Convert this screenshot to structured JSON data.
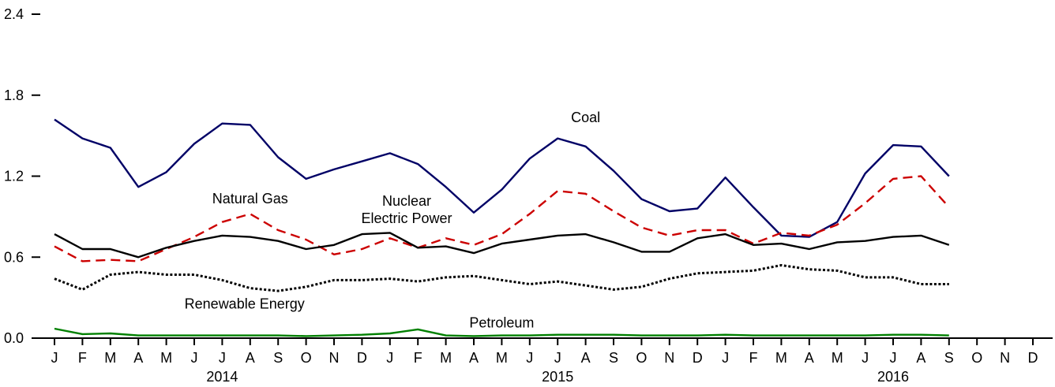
{
  "chart_data": {
    "type": "line",
    "title": "",
    "xlabel": "",
    "ylabel": "",
    "ylim": [
      0,
      2.4
    ],
    "yticks": [
      "0.0",
      "0.6",
      "1.2",
      "1.8",
      "2.4"
    ],
    "ytick_values": [
      0,
      0.6,
      1.2,
      1.8,
      2.4
    ],
    "month_labels": [
      "J",
      "F",
      "M",
      "A",
      "M",
      "J",
      "J",
      "A",
      "S",
      "O",
      "N",
      "D",
      "J",
      "F",
      "M",
      "A",
      "M",
      "J",
      "J",
      "A",
      "S",
      "O",
      "N",
      "D",
      "J",
      "F",
      "M",
      "A",
      "M",
      "J",
      "J",
      "A",
      "S",
      "O",
      "N",
      "D"
    ],
    "year_labels": [
      {
        "label": "2014",
        "month_index": 6
      },
      {
        "label": "2015",
        "month_index": 18
      },
      {
        "label": "2016",
        "month_index": 30
      }
    ],
    "grid": false,
    "legend": "inline labels",
    "series": [
      {
        "name": "Coal",
        "color": "#000066",
        "style": "solid",
        "label_anchor": {
          "month_index": 19,
          "value": 1.6
        },
        "values": [
          1.62,
          1.48,
          1.41,
          1.12,
          1.23,
          1.44,
          1.59,
          1.58,
          1.34,
          1.18,
          1.25,
          1.31,
          1.37,
          1.29,
          1.12,
          0.93,
          1.1,
          1.33,
          1.48,
          1.42,
          1.24,
          1.03,
          0.94,
          0.96,
          1.19,
          0.97,
          0.76,
          0.75,
          0.86,
          1.22,
          1.43,
          1.42,
          1.2
        ]
      },
      {
        "name": "Natural Gas",
        "color": "#cc0000",
        "style": "dashed",
        "label_anchor": {
          "month_index": 7,
          "value": 1.0
        },
        "values": [
          0.68,
          0.57,
          0.58,
          0.57,
          0.66,
          0.75,
          0.86,
          0.92,
          0.8,
          0.73,
          0.62,
          0.66,
          0.74,
          0.67,
          0.74,
          0.69,
          0.77,
          0.92,
          1.09,
          1.07,
          0.94,
          0.82,
          0.76,
          0.8,
          0.8,
          0.7,
          0.78,
          0.76,
          0.84,
          1.0,
          1.18,
          1.2,
          0.97
        ]
      },
      {
        "name": "Nuclear Electric Power",
        "label_lines": [
          "Nuclear",
          "Electric Power"
        ],
        "color": "#000000",
        "style": "solid",
        "label_anchor": {
          "month_index": 12.6,
          "value": 0.98
        },
        "values": [
          0.77,
          0.66,
          0.66,
          0.6,
          0.67,
          0.72,
          0.76,
          0.75,
          0.72,
          0.66,
          0.69,
          0.77,
          0.78,
          0.67,
          0.68,
          0.63,
          0.7,
          0.73,
          0.76,
          0.77,
          0.71,
          0.64,
          0.64,
          0.74,
          0.77,
          0.69,
          0.7,
          0.66,
          0.71,
          0.72,
          0.75,
          0.76,
          0.69
        ]
      },
      {
        "name": "Renewable Energy",
        "color": "#000000",
        "style": "dotted",
        "label_anchor": {
          "month_index": 6.8,
          "value": 0.22
        },
        "values": [
          0.44,
          0.36,
          0.47,
          0.49,
          0.47,
          0.47,
          0.43,
          0.37,
          0.35,
          0.38,
          0.43,
          0.43,
          0.44,
          0.42,
          0.45,
          0.46,
          0.43,
          0.4,
          0.42,
          0.39,
          0.36,
          0.38,
          0.44,
          0.48,
          0.49,
          0.5,
          0.54,
          0.51,
          0.5,
          0.45,
          0.45,
          0.4,
          0.4
        ]
      },
      {
        "name": "Petroleum",
        "color": "#008000",
        "style": "solid",
        "label_anchor": {
          "month_index": 16,
          "value": 0.08
        },
        "values": [
          0.07,
          0.03,
          0.035,
          0.02,
          0.02,
          0.02,
          0.02,
          0.02,
          0.02,
          0.015,
          0.02,
          0.025,
          0.035,
          0.065,
          0.02,
          0.015,
          0.02,
          0.02,
          0.025,
          0.025,
          0.025,
          0.02,
          0.02,
          0.02,
          0.025,
          0.02,
          0.02,
          0.02,
          0.02,
          0.02,
          0.025,
          0.025,
          0.02
        ]
      }
    ]
  }
}
